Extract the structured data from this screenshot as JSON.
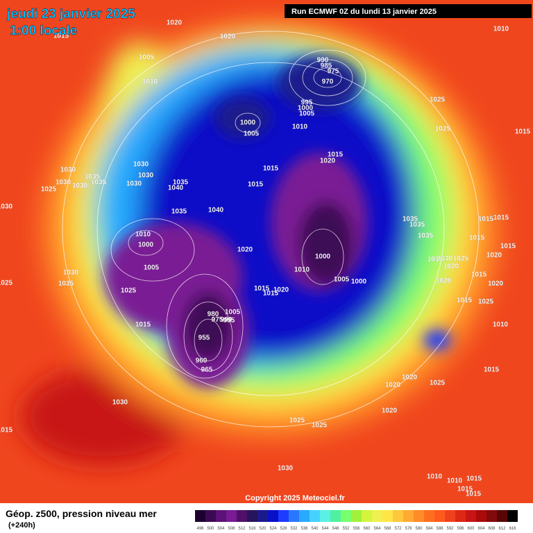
{
  "header": {
    "date": "jeudi 23 janvier 2025",
    "time": "1:00 locale",
    "run": "Run ECMWF 0Z du lundi 13 janvier 2025"
  },
  "map": {
    "pressure_labels": [
      1020,
      1020,
      1005,
      1010,
      990,
      985,
      975,
      970,
      995,
      1000,
      1005,
      1010,
      1000,
      1005,
      1015,
      1020,
      1015,
      1015,
      1025,
      1025,
      1015,
      1030,
      1030,
      1035,
      1030,
      1030,
      1035,
      1025,
      1030,
      1030,
      1035,
      1040,
      1035,
      1040,
      1030,
      1010,
      1000,
      1005,
      1020,
      1010,
      1000,
      1005,
      1000,
      1035,
      1035,
      1035,
      1015,
      1015,
      1015,
      1015,
      1020,
      1030,
      1025,
      1020,
      1015,
      1015,
      1020,
      1020,
      1030,
      1035,
      1025,
      1025,
      1015,
      1020,
      1015,
      1005,
      980,
      975,
      990,
      995,
      1015,
      1025,
      1010,
      1015,
      955,
      960,
      965,
      1015,
      1020,
      1025,
      1020,
      1020,
      1030,
      1025,
      1025,
      1015,
      1030,
      1010,
      1010,
      1015,
      1015,
      1015,
      1010,
      1015
    ]
  },
  "footer": {
    "copyright": "Copyright 2025 Meteociel.fr",
    "legend_title": "Géop. z500, pression niveau mer",
    "lead_time": "(+240h)",
    "scale": {
      "values": [
        496,
        500,
        504,
        508,
        512,
        516,
        520,
        524,
        528,
        532,
        536,
        540,
        544,
        548,
        552,
        556,
        560,
        564,
        568,
        572,
        576,
        580,
        584,
        588,
        592,
        596,
        600,
        604,
        608,
        612,
        616
      ],
      "colors": [
        "#1e0030",
        "#3c0a55",
        "#5c1276",
        "#7a1a94",
        "#50106a",
        "#28145e",
        "#1a1a8c",
        "#0a10c8",
        "#1e3cff",
        "#2878ff",
        "#28aaff",
        "#46d2ff",
        "#5af0e6",
        "#50f0a0",
        "#78ff6e",
        "#a0f03c",
        "#d2f53c",
        "#f0f050",
        "#ffe646",
        "#ffc83c",
        "#ffaa32",
        "#ff8c28",
        "#ff6e1e",
        "#ff5a1e",
        "#f0411e",
        "#dc2814",
        "#c81414",
        "#aa0a0a",
        "#820a0a",
        "#5a0505",
        "#000000"
      ]
    }
  }
}
